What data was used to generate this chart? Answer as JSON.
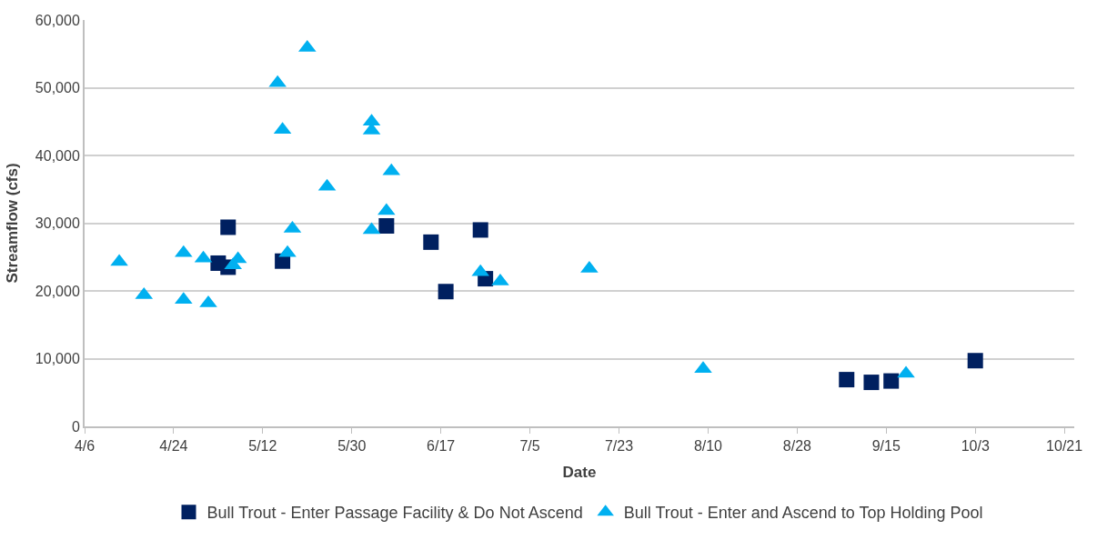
{
  "chart_data": {
    "type": "scatter",
    "xlabel": "Date",
    "ylabel": "Streamflow (cfs)",
    "xlim": [
      "--04-06",
      "--10-23"
    ],
    "xticks": [
      {
        "value": "--04-06",
        "label": "4/6"
      },
      {
        "value": "--04-24",
        "label": "4/24"
      },
      {
        "value": "--05-12",
        "label": "5/12"
      },
      {
        "value": "--05-30",
        "label": "5/30"
      },
      {
        "value": "--06-17",
        "label": "6/17"
      },
      {
        "value": "--07-05",
        "label": "7/5"
      },
      {
        "value": "--07-23",
        "label": "7/23"
      },
      {
        "value": "--08-10",
        "label": "8/10"
      },
      {
        "value": "--08-28",
        "label": "8/28"
      },
      {
        "value": "--09-15",
        "label": "9/15"
      },
      {
        "value": "--10-03",
        "label": "10/3"
      },
      {
        "value": "--10-21",
        "label": "10/21"
      }
    ],
    "ylim": [
      0,
      60000
    ],
    "yticks": [
      {
        "value": 0,
        "label": "0"
      },
      {
        "value": 10000,
        "label": "10,000"
      },
      {
        "value": 20000,
        "label": "20,000"
      },
      {
        "value": 30000,
        "label": "30,000"
      },
      {
        "value": 40000,
        "label": "40,000"
      },
      {
        "value": 50000,
        "label": "50,000"
      },
      {
        "value": 60000,
        "label": "60,000"
      }
    ],
    "grid": "y",
    "legend": "bottom",
    "series": [
      {
        "name": "Bull Trout - Enter Passage Facility & Do Not Ascend",
        "color": "#002060",
        "marker": "square",
        "x": [
          "--05-03",
          "--05-05",
          "--05-05",
          "--05-16",
          "--06-06",
          "--06-15",
          "--06-18",
          "--06-25",
          "--06-26",
          "--09-07",
          "--09-12",
          "--09-16",
          "--10-03"
        ],
        "values": [
          24100,
          23500,
          29400,
          24400,
          29600,
          27200,
          19900,
          29000,
          21800,
          6900,
          6500,
          6700,
          9700
        ]
      },
      {
        "name": "Bull Trout - Enter and Ascend to Top Holding Pool",
        "color": "#00b0f0",
        "marker": "triangle",
        "x": [
          "--04-13",
          "--04-18",
          "--04-26",
          "--04-26",
          "--04-30",
          "--05-01",
          "--05-06",
          "--05-07",
          "--05-15",
          "--05-16",
          "--05-17",
          "--05-18",
          "--05-21",
          "--05-25",
          "--06-03",
          "--06-03",
          "--06-03",
          "--06-06",
          "--06-07",
          "--06-25",
          "--06-29",
          "--07-17",
          "--08-09",
          "--09-19"
        ],
        "values": [
          24300,
          19400,
          25600,
          18700,
          24800,
          18200,
          23800,
          24700,
          50700,
          43800,
          25600,
          29200,
          55900,
          35400,
          45000,
          43700,
          29000,
          31800,
          37700,
          22800,
          21400,
          23300,
          8500,
          7800
        ]
      }
    ]
  }
}
